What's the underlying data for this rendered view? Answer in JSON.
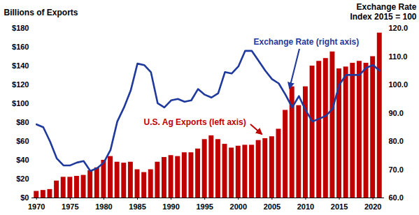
{
  "chart_data": {
    "type": "bar",
    "y_label": "Billions of Exports",
    "y2_label": "Exchange Rate\nIndex 2015 = 100",
    "x": [
      1970,
      1971,
      1972,
      1973,
      1974,
      1975,
      1976,
      1977,
      1978,
      1979,
      1980,
      1981,
      1982,
      1983,
      1984,
      1985,
      1986,
      1987,
      1988,
      1989,
      1990,
      1991,
      1992,
      1993,
      1994,
      1995,
      1996,
      1997,
      1998,
      1999,
      2000,
      2001,
      2002,
      2003,
      2004,
      2005,
      2006,
      2007,
      2008,
      2009,
      2010,
      2011,
      2012,
      2013,
      2014,
      2015,
      2016,
      2017,
      2018,
      2019,
      2020,
      2021
    ],
    "series": [
      {
        "name": "U.S. Ag Exports (left axis)",
        "type": "bar",
        "color": "#c00000",
        "values": [
          7,
          8,
          9,
          18,
          22,
          22,
          23,
          24,
          29,
          32,
          40,
          44,
          38,
          37,
          38,
          30,
          27,
          30,
          38,
          43,
          45,
          44,
          48,
          48,
          52,
          62,
          66,
          62,
          57,
          53,
          55,
          56,
          56,
          61,
          63,
          65,
          73,
          93,
          118,
          98,
          118,
          140,
          145,
          148,
          155,
          137,
          139,
          143,
          145,
          143,
          150,
          175
        ]
      },
      {
        "name": "Exchange Rate (right axis)",
        "type": "line",
        "color": "#1f3a9c",
        "axis": "y2",
        "values": [
          86,
          85,
          80,
          74,
          71.5,
          71.5,
          72.5,
          73,
          69.5,
          70.5,
          72.5,
          77,
          87,
          92,
          98,
          107.5,
          107,
          104.5,
          93.5,
          92,
          94.5,
          95,
          94,
          94.5,
          98.5,
          96.5,
          95.5,
          97,
          104.5,
          104,
          106.5,
          112,
          112,
          108.5,
          105,
          102,
          100.5,
          96.5,
          92,
          96,
          91,
          87,
          88,
          89,
          91.5,
          100,
          103.5,
          103.5,
          103.5,
          106,
          107,
          105
        ]
      }
    ],
    "xlim": [
      1969.3,
      2021.7
    ],
    "xticks": [
      1970,
      1975,
      1980,
      1985,
      1990,
      1995,
      2000,
      2005,
      2010,
      2015,
      2020
    ],
    "ylim": [
      0,
      180
    ],
    "yticks": [
      {
        "value": 0,
        "label": "$0"
      },
      {
        "value": 20,
        "label": "$20"
      },
      {
        "value": 40,
        "label": "$40"
      },
      {
        "value": 60,
        "label": "$60"
      },
      {
        "value": 80,
        "label": "$80"
      },
      {
        "value": 100,
        "label": "$100"
      },
      {
        "value": 120,
        "label": "$120"
      },
      {
        "value": 140,
        "label": "$140"
      },
      {
        "value": 160,
        "label": "$160"
      },
      {
        "value": 180,
        "label": "$180"
      }
    ],
    "y2lim": [
      60,
      120
    ],
    "y2ticks": [
      {
        "value": 60,
        "label": "60.0"
      },
      {
        "value": 70,
        "label": "70.0"
      },
      {
        "value": 80,
        "label": "80.0"
      },
      {
        "value": 90,
        "label": "90.0"
      },
      {
        "value": 100,
        "label": "100.0"
      },
      {
        "value": 110,
        "label": "110.0"
      },
      {
        "value": 120,
        "label": "120.0"
      }
    ],
    "grid": false
  }
}
